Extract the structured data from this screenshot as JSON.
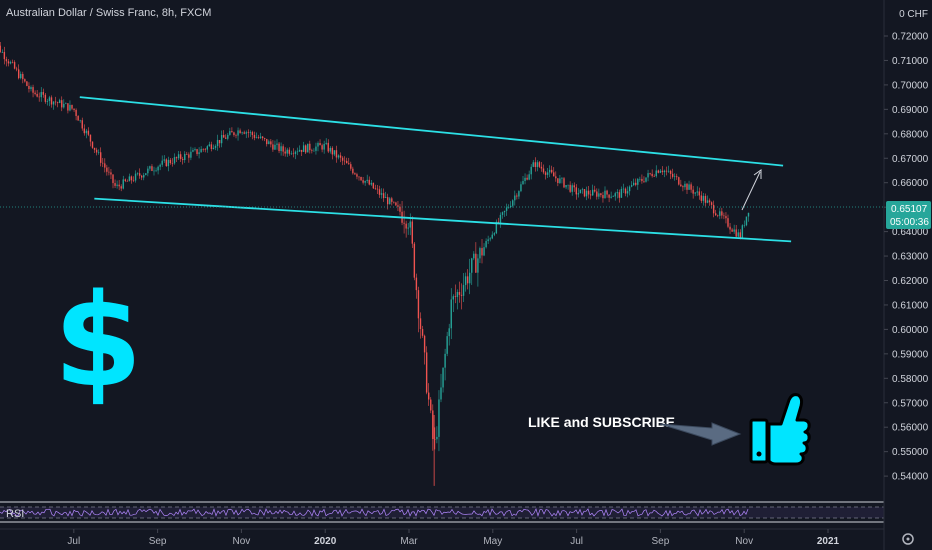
{
  "header": {
    "title": "Australian Dollar / Swiss Franc, 8h, FXCM"
  },
  "price_scale": {
    "currency": "0 CHF",
    "last_price": "0.65107",
    "countdown": "05:00:36"
  },
  "rsi_label": "RSI",
  "annotations": {
    "dollar": "$",
    "like_subscribe": "LIKE and SUBSCRIBE"
  },
  "colors": {
    "background": "#131722",
    "up": "#26a69a",
    "down": "#ef5350",
    "channel": "#2ce0e6",
    "accent": "#00e5ff",
    "last_price_bg": "#26a69a"
  },
  "chart_data": {
    "type": "candlestick",
    "title": "Australian Dollar / Swiss Franc, 8h, FXCM",
    "ylim": [
      0.535,
      0.722
    ],
    "y_ticks": [
      "0.72000",
      "0.71000",
      "0.70000",
      "0.69000",
      "0.68000",
      "0.67000",
      "0.66000",
      "0.65000",
      "0.64000",
      "0.63000",
      "0.62000",
      "0.61000",
      "0.60000",
      "0.59000",
      "0.58000",
      "0.57000",
      "0.56000",
      "0.55000",
      "0.54000"
    ],
    "x_ticks": [
      "May",
      "Jul",
      "Sep",
      "Nov",
      "2020",
      "Mar",
      "May",
      "Jul",
      "Sep",
      "Nov",
      "2021"
    ],
    "series": [
      {
        "name": "AUDCHF",
        "x": [
          "2019-05",
          "2019-06",
          "2019-07",
          "2019-08",
          "2019-09",
          "2019-10",
          "2019-11",
          "2019-12",
          "2020-01",
          "2020-02",
          "2020-03-01",
          "2020-03-19",
          "2020-04",
          "2020-05",
          "2020-06",
          "2020-07",
          "2020-08",
          "2020-09",
          "2020-10",
          "2020-10-28",
          "2020-11-05"
        ],
        "y": [
          0.72,
          0.697,
          0.69,
          0.658,
          0.667,
          0.673,
          0.682,
          0.673,
          0.675,
          0.66,
          0.645,
          0.55,
          0.61,
          0.64,
          0.668,
          0.656,
          0.655,
          0.666,
          0.654,
          0.638,
          0.651
        ]
      }
    ],
    "channel": {
      "upper": [
        {
          "x": "2019-07",
          "y": 0.695
        },
        {
          "x": "2020-12",
          "y": 0.667
        }
      ],
      "lower": [
        {
          "x": "2019-07-20",
          "y": 0.6535
        },
        {
          "x": "2020-12",
          "y": 0.636
        }
      ]
    },
    "current": {
      "price": 0.65107,
      "countdown": "05:00:36"
    },
    "rsi": {
      "label": "RSI"
    }
  }
}
